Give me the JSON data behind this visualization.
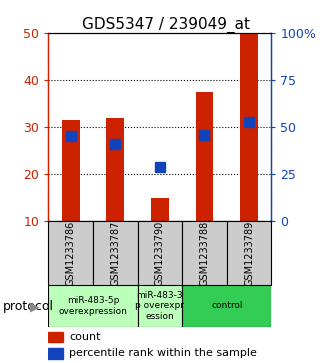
{
  "title": "GDS5347 / 239049_at",
  "samples": [
    "GSM1233786",
    "GSM1233787",
    "GSM1233790",
    "GSM1233788",
    "GSM1233789"
  ],
  "count_values": [
    31.5,
    32.0,
    15.0,
    37.5,
    50.0
  ],
  "percentile_values": [
    45.0,
    41.0,
    29.0,
    46.0,
    52.5
  ],
  "ylim_left": [
    10,
    50
  ],
  "ylim_right": [
    0,
    100
  ],
  "left_ticks": [
    10,
    20,
    30,
    40,
    50
  ],
  "right_ticks": [
    0,
    25,
    50,
    75,
    100
  ],
  "right_tick_labels": [
    "0",
    "25",
    "50",
    "75",
    "100%"
  ],
  "bar_color": "#cc2200",
  "blue_color": "#1144bb",
  "proto_groups": [
    {
      "start": 0,
      "end": 2,
      "label": "miR-483-5p\noverexpression",
      "color": "#bbffbb"
    },
    {
      "start": 2,
      "end": 3,
      "label": "miR-483-3\np overexpr\nession",
      "color": "#bbffbb"
    },
    {
      "start": 3,
      "end": 5,
      "label": "control",
      "color": "#33cc55"
    }
  ],
  "protocol_label": "protocol",
  "legend_count": "count",
  "legend_percentile": "percentile rank within the sample",
  "bar_width": 0.4,
  "blue_marker_size": 7
}
